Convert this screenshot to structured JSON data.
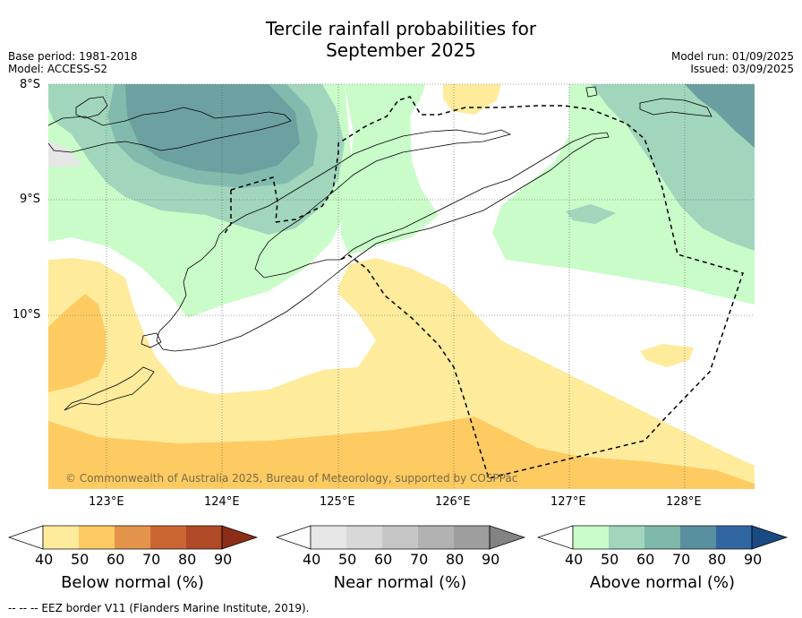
{
  "title_line1": "Tercile rainfall probabilities for",
  "title_line2": "September 2025",
  "meta_left": {
    "base_period": "Base period: 1981-2018",
    "model": "Model: ACCESS-S2"
  },
  "meta_right": {
    "model_run": "Model run: 01/09/2025",
    "issued": "Issued: 03/09/2025"
  },
  "map": {
    "lat_labels": [
      "8°S",
      "9°S",
      "10°S"
    ],
    "lon_labels": [
      "123°E",
      "124°E",
      "125°E",
      "126°E",
      "127°E",
      "128°E"
    ],
    "lon_range": [
      122.5,
      128.6
    ],
    "lat_range": [
      -11.5,
      -8.0
    ],
    "copyright": "© Commonwealth of Australia 2025, Bureau of Meteorology, supported by COSPPac"
  },
  "colorbars": [
    {
      "name": "Below normal (%)",
      "ticks": [
        "40",
        "50",
        "60",
        "70",
        "80",
        "90"
      ],
      "colors": [
        "#ffffff",
        "#ffeb9c",
        "#fecb63",
        "#e3944a",
        "#cb6634",
        "#b04a26",
        "#8c2d18"
      ]
    },
    {
      "name": "Near normal (%)",
      "ticks": [
        "40",
        "50",
        "60",
        "70",
        "80",
        "90"
      ],
      "colors": [
        "#ffffff",
        "#e6e6e6",
        "#d8d8d8",
        "#c6c6c6",
        "#b2b2b2",
        "#9e9e9e",
        "#838383"
      ]
    },
    {
      "name": "Above normal (%)",
      "ticks": [
        "40",
        "50",
        "60",
        "70",
        "80",
        "90"
      ],
      "colors": [
        "#ffffff",
        "#c9fcc9",
        "#a1d6bd",
        "#7eb8ab",
        "#5890a0",
        "#3167a0",
        "#1a4a82"
      ]
    }
  ],
  "footer": "--  --  -- EEZ border V11 (Flanders Marine Institute, 2019)."
}
